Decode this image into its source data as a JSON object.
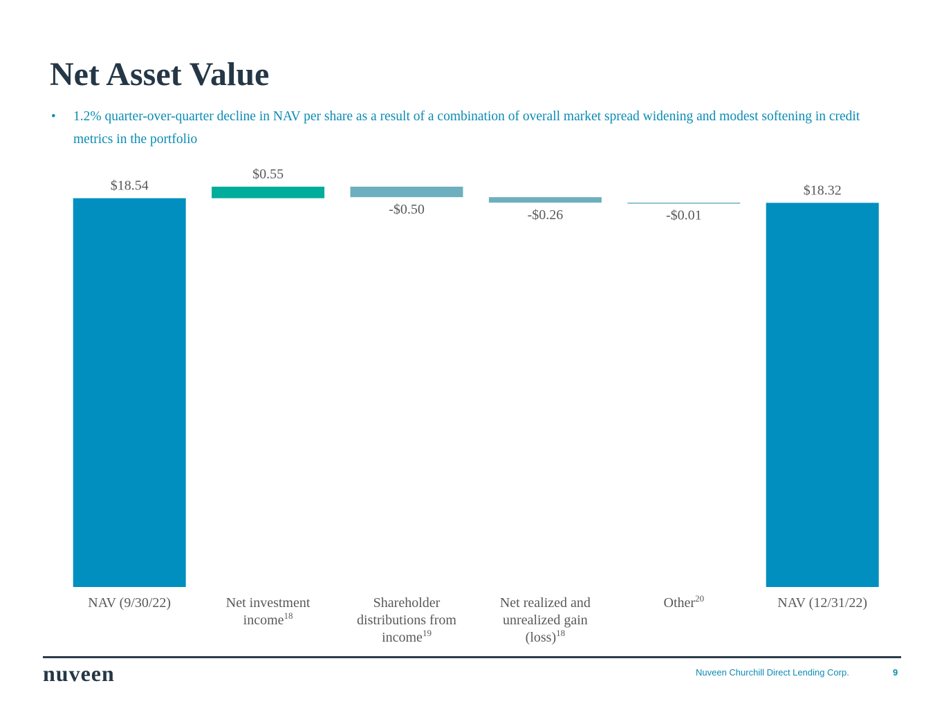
{
  "slide": {
    "title": "Net Asset Value",
    "bullet": "1.2% quarter-over-quarter decline in NAV per share as a result of a combination of overall market spread widening and modest softening in credit metrics in the portfolio",
    "logo": "nuveen",
    "footer": "Nuveen Churchill Direct Lending Corp.",
    "page": "9"
  },
  "chart_data": {
    "type": "waterfall",
    "categories": [
      "NAV (9/30/22)",
      "Net investment income",
      "Shareholder distributions from income",
      "Net realized and unrealized gain (loss)",
      "Other",
      "NAV (12/31/22)"
    ],
    "footnotes": [
      null,
      "18",
      "19",
      "18",
      "20",
      null
    ],
    "measure": [
      "absolute",
      "relative",
      "relative",
      "relative",
      "relative",
      "total"
    ],
    "values": [
      18.54,
      0.55,
      -0.5,
      -0.26,
      -0.01,
      18.32
    ],
    "value_labels": [
      "$18.54",
      "$0.55",
      "-$0.50",
      "-$0.26",
      "-$0.01",
      "$18.32"
    ],
    "colors": [
      "#008fbf",
      "#00ad9a",
      "#6dafbe",
      "#6dafbe",
      "#6dafbe",
      "#008fbf"
    ]
  }
}
